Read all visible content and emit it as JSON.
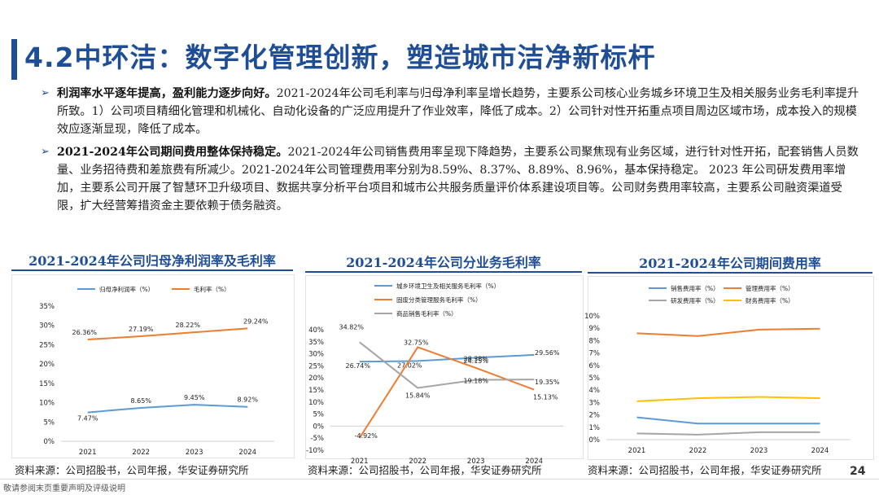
{
  "page_title": "4.2中环洁：数字化管理创新，塑造城市洁净新标杆",
  "bullets": [
    {
      "lead": "利润率水平逐年提高，盈利能力逐步向好。",
      "body": "2021-2024年公司毛利率与归母净利率呈增长趋势，主要系公司核心业务城乡环境卫生及相关服务业务毛利率提升所致。1）公司项目精细化管理和机械化、自动化设备的广泛应用提升了作业效率，降低了成本。2）公司针对性开拓重点项目周边区域市场，成本投入的规模效应逐渐显现，降低了成本。"
    },
    {
      "lead": "2021-2024年公司期间费用整体保持稳定。",
      "body": "2021-2024年公司销售费用率呈现下降趋势，主要系公司聚焦现有业务区域，进行针对性开拓，配套销售人员数量、业务招待费和差旅费有所减少。2021-2024年公司管理费用率分别为8.59%、8.37%、8.89%、8.96%，基本保持稳定。 2023 年公司研发费用率增加，主要系公司开展了智慧环卫升级项目、数据共享分析平台项目和城市公共服务质量评价体系建设项目等。公司财务费用率较高，主要系公司融资渠道受限，扩大经营筹措资金主要依赖于债务融资。"
    }
  ],
  "chart_data": [
    {
      "type": "line",
      "title": "2021-2024年公司归母净利润率及毛利率",
      "x": [
        "2021",
        "2022",
        "2023",
        "2024"
      ],
      "yticks": [
        "0%",
        "5%",
        "10%",
        "15%",
        "20%",
        "25%",
        "30%",
        "35%"
      ],
      "ylim": [
        0,
        35
      ],
      "series": [
        {
          "name": "归母净利润率（%）",
          "color": "#5b9bd5",
          "values": [
            7.47,
            8.65,
            9.45,
            8.92
          ],
          "labels": [
            "7.47%",
            "8.65%",
            "9.45%",
            "8.92%"
          ]
        },
        {
          "name": "毛利率（%）",
          "color": "#ed7d31",
          "values": [
            26.36,
            27.19,
            28.22,
            29.24
          ],
          "labels": [
            "26.36%",
            "27.19%",
            "28.22%",
            "29.24%"
          ]
        }
      ],
      "legend": "top"
    },
    {
      "type": "line",
      "title": "2021-2024年公司分业务毛利率",
      "x": [
        "2021",
        "2022",
        "2023",
        "2024"
      ],
      "yticks": [
        "-10%",
        "-5%",
        "0%",
        "5%",
        "10%",
        "15%",
        "20%",
        "25%",
        "30%",
        "35%",
        "40%"
      ],
      "ylim": [
        -10,
        40
      ],
      "series": [
        {
          "name": "城乡环境卫生及相关服务毛利率（%）",
          "color": "#5b9bd5",
          "values": [
            26.74,
            27.02,
            28.38,
            29.56
          ],
          "labels": [
            "26.74%",
            "27.02%",
            "28.38%",
            "29.56%"
          ]
        },
        {
          "name": "固废分类管理服务毛利率（%）",
          "color": "#ed7d31",
          "values": [
            -4.92,
            32.75,
            24.15,
            15.13
          ],
          "labels": [
            "-4.92%",
            "32.75%",
            "24.15%",
            "15.13%"
          ]
        },
        {
          "name": "商品销售毛利率（%）",
          "color": "#a5a5a5",
          "values": [
            34.82,
            15.84,
            19.18,
            19.35
          ],
          "labels": [
            "34.82%",
            "15.84%",
            "19.18%",
            "19.35%"
          ]
        }
      ],
      "legend": "top-left"
    },
    {
      "type": "line",
      "title": "2021-2024年公司期间费用率",
      "x": [
        "2021",
        "2022",
        "2023",
        "2024"
      ],
      "yticks": [
        "0%",
        "1%",
        "2%",
        "3%",
        "4%",
        "5%",
        "6%",
        "7%",
        "8%",
        "9%",
        "10%"
      ],
      "ylim": [
        0,
        10
      ],
      "series": [
        {
          "name": "销售费用率（%）",
          "color": "#5b9bd5",
          "values": [
            1.8,
            1.3,
            1.3,
            1.3
          ]
        },
        {
          "name": "管理费用率（%）",
          "color": "#ed7d31",
          "values": [
            8.59,
            8.37,
            8.89,
            8.96
          ]
        },
        {
          "name": "研发费用率（%）",
          "color": "#a5a5a5",
          "values": [
            0.5,
            0.4,
            0.6,
            0.6
          ]
        },
        {
          "name": "财务费用率（%）",
          "color": "#ffc000",
          "values": [
            3.1,
            3.35,
            3.45,
            3.35
          ]
        }
      ],
      "legend": "top"
    }
  ],
  "sources": [
    "资料来源：公司招股书，公司年报，华安证券研究所",
    "资料来源：公司招股书，公司年报，华安证券研究所",
    "资料来源：公司招股书，公司年报，华安证券研究所"
  ],
  "footer": "敬请参阅末页重要声明及评级说明",
  "page_number": "24"
}
